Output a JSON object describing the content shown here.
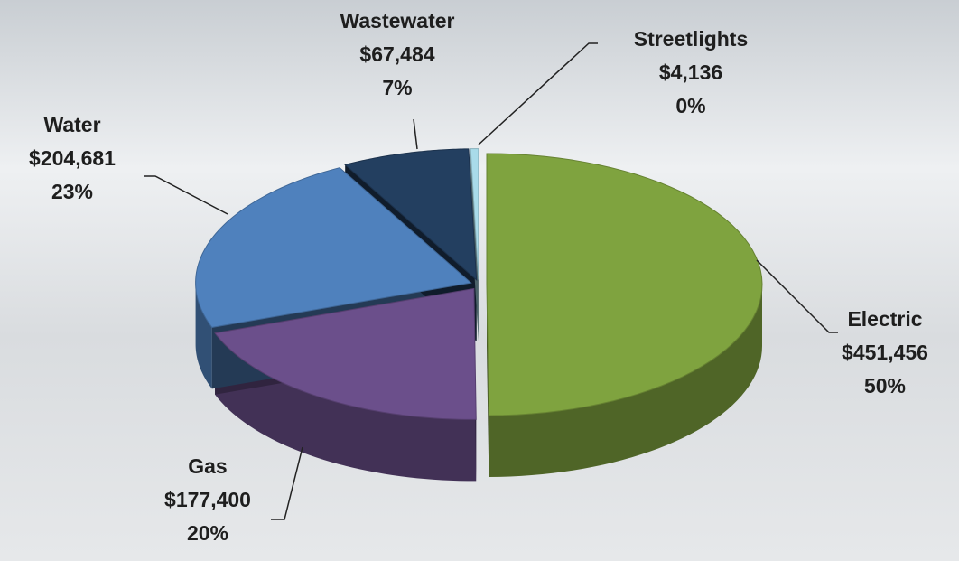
{
  "chart_data": {
    "type": "pie",
    "categories": [
      "Electric",
      "Gas",
      "Water",
      "Wastewater",
      "Streetlights"
    ],
    "values": [
      451456,
      177400,
      204681,
      67484,
      4136
    ],
    "value_labels": [
      "$451,456",
      "$177,400",
      "$204,681",
      "$67,484",
      "$4,136"
    ],
    "percent_labels": [
      "50%",
      "20%",
      "23%",
      "7%",
      "0%"
    ],
    "colors": [
      "#7fa33f",
      "#6b4f8b",
      "#4f81bd",
      "#233f60",
      "#a9dbe9"
    ]
  }
}
